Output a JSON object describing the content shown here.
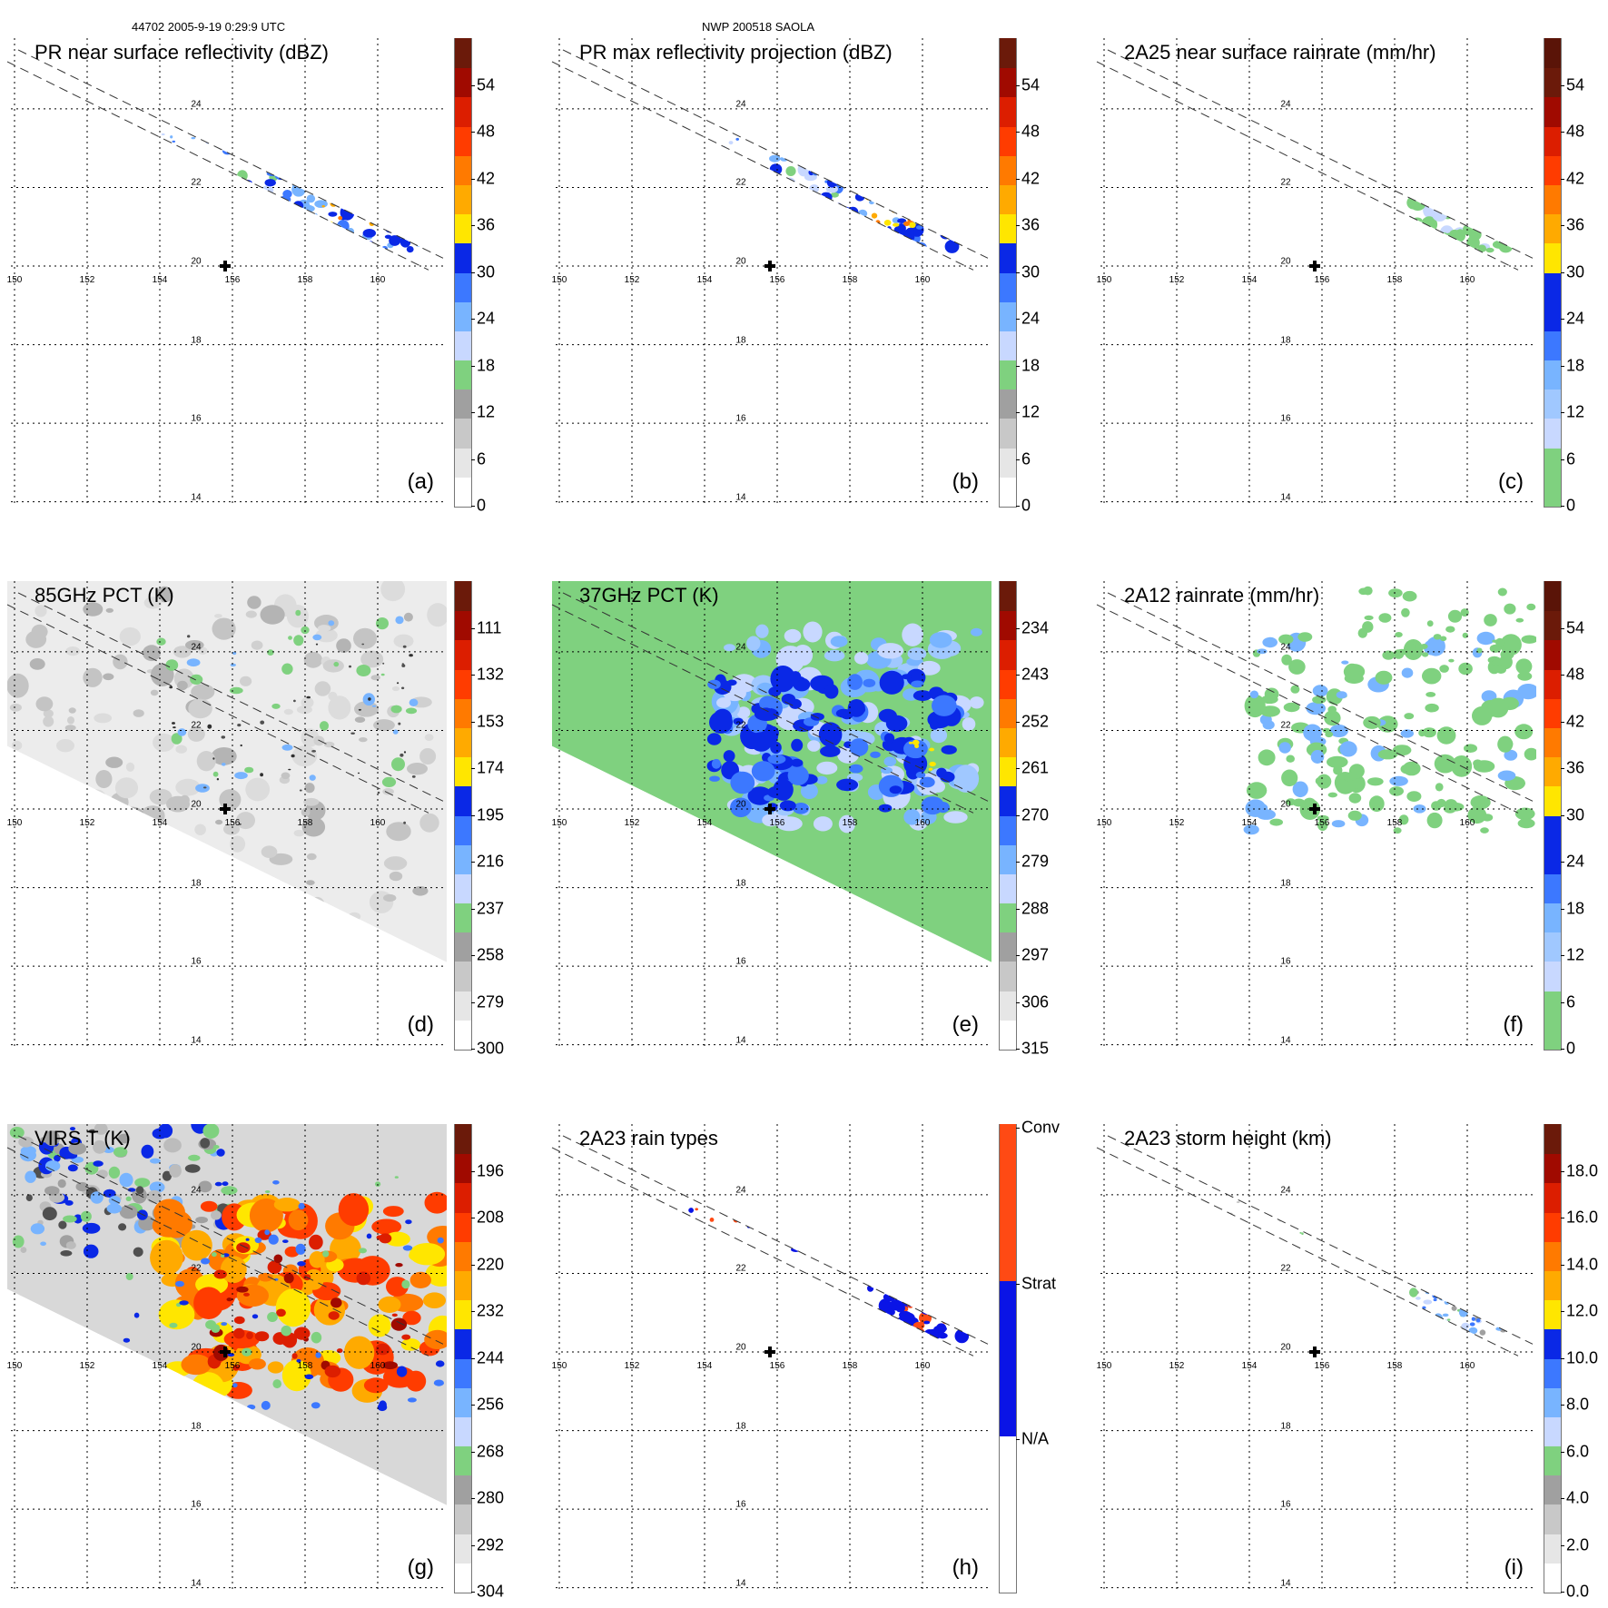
{
  "header": {
    "orbit_time": "44702 2005-9-19 0:29:9 UTC",
    "storm_name": "NWP 200518 SAOLA"
  },
  "map_axes": {
    "lon_labels": [
      "150",
      "152",
      "154",
      "156",
      "158",
      "160"
    ],
    "lat_labels": [
      "24",
      "22",
      "20",
      "18",
      "16",
      "14"
    ],
    "storm_center": {
      "lon": 155.8,
      "lat": 20.0
    }
  },
  "panels": [
    {
      "id": "a",
      "title": "PR near surface reflectivity (dBZ)",
      "letter": "(a)",
      "field": "pr-swath",
      "colorbar": {
        "ticks": [
          "54",
          "48",
          "42",
          "36",
          "30",
          "24",
          "18",
          "12",
          "6",
          "0"
        ],
        "colors": [
          "#ffffff",
          "#e6e6e6",
          "#c8c8c8",
          "#a0a0a0",
          "#7fd17f",
          "#c8d8ff",
          "#78b4ff",
          "#3c78ff",
          "#0a28e6",
          "#ffe600",
          "#ffaa00",
          "#ff7a00",
          "#ff3c00",
          "#dc1e00",
          "#a00a00",
          "#6b1a0a"
        ]
      }
    },
    {
      "id": "b",
      "title": "PR max reflectivity projection (dBZ)",
      "letter": "(b)",
      "field": "pr-swath-max",
      "colorbar": {
        "ticks": [
          "54",
          "48",
          "42",
          "36",
          "30",
          "24",
          "18",
          "12",
          "6",
          "0"
        ],
        "colors": [
          "#ffffff",
          "#e6e6e6",
          "#c8c8c8",
          "#a0a0a0",
          "#7fd17f",
          "#c8d8ff",
          "#78b4ff",
          "#3c78ff",
          "#0a28e6",
          "#ffe600",
          "#ffaa00",
          "#ff7a00",
          "#ff3c00",
          "#dc1e00",
          "#a00a00",
          "#6b1a0a"
        ]
      }
    },
    {
      "id": "c",
      "title": "2A25 near surface rainrate (mm/hr)",
      "letter": "(c)",
      "field": "pr-rain",
      "colorbar": {
        "ticks": [
          "54",
          "48",
          "42",
          "36",
          "30",
          "24",
          "18",
          "12",
          "6",
          "0"
        ],
        "colors": [
          "#7fd17f",
          "#7fd17f",
          "#c8d8ff",
          "#a0c8ff",
          "#78b4ff",
          "#3c78ff",
          "#0a28e6",
          "#0a28e6",
          "#ffe600",
          "#ffaa00",
          "#ff7a00",
          "#ff3c00",
          "#dc1e00",
          "#a00a00",
          "#6b1a0a",
          "#5a1408"
        ]
      }
    },
    {
      "id": "d",
      "title": "85GHz PCT (K)",
      "letter": "(d)",
      "field": "tmi-85",
      "colorbar": {
        "ticks": [
          "111",
          "132",
          "153",
          "174",
          "195",
          "216",
          "237",
          "258",
          "279",
          "300"
        ],
        "colors": [
          "#ffffff",
          "#e6e6e6",
          "#c8c8c8",
          "#a0a0a0",
          "#7fd17f",
          "#c8d8ff",
          "#78b4ff",
          "#3c78ff",
          "#0a28e6",
          "#ffe600",
          "#ffaa00",
          "#ff7a00",
          "#ff3c00",
          "#dc1e00",
          "#a00a00",
          "#6b1a0a"
        ]
      }
    },
    {
      "id": "e",
      "title": "37GHz PCT (K)",
      "letter": "(e)",
      "field": "tmi-37",
      "colorbar": {
        "ticks": [
          "234",
          "243",
          "252",
          "261",
          "270",
          "279",
          "288",
          "297",
          "306",
          "315"
        ],
        "colors": [
          "#ffffff",
          "#e6e6e6",
          "#c8c8c8",
          "#a0a0a0",
          "#7fd17f",
          "#c8d8ff",
          "#78b4ff",
          "#3c78ff",
          "#0a28e6",
          "#ffe600",
          "#ffaa00",
          "#ff7a00",
          "#ff3c00",
          "#dc1e00",
          "#a00a00",
          "#6b1a0a"
        ]
      }
    },
    {
      "id": "f",
      "title": "2A12 rainrate (mm/hr)",
      "letter": "(f)",
      "field": "tmi-rain",
      "colorbar": {
        "ticks": [
          "54",
          "48",
          "42",
          "36",
          "30",
          "24",
          "18",
          "12",
          "6",
          "0"
        ],
        "colors": [
          "#7fd17f",
          "#7fd17f",
          "#c8d8ff",
          "#a0c8ff",
          "#78b4ff",
          "#3c78ff",
          "#0a28e6",
          "#0a28e6",
          "#ffe600",
          "#ffaa00",
          "#ff7a00",
          "#ff3c00",
          "#dc1e00",
          "#a00a00",
          "#6b1a0a",
          "#5a1408"
        ]
      }
    },
    {
      "id": "g",
      "title": "VIRS T (K)",
      "letter": "(g)",
      "field": "virs",
      "colorbar": {
        "ticks": [
          "196",
          "208",
          "220",
          "232",
          "244",
          "256",
          "268",
          "280",
          "292",
          "304"
        ],
        "colors": [
          "#ffffff",
          "#e6e6e6",
          "#c8c8c8",
          "#a0a0a0",
          "#7fd17f",
          "#c8d8ff",
          "#78b4ff",
          "#3c78ff",
          "#0a28e6",
          "#ffe600",
          "#ffaa00",
          "#ff7a00",
          "#ff3c00",
          "#dc1e00",
          "#a00a00",
          "#6b1a0a"
        ]
      }
    },
    {
      "id": "h",
      "title": "2A23 rain types",
      "letter": "(h)",
      "field": "pr-type",
      "colorbar": {
        "categorical": true,
        "ticks": [
          "Conv",
          "Strat",
          "N/A"
        ],
        "colors": [
          "#ffffff",
          "#0a14e6",
          "#ff4a14"
        ]
      }
    },
    {
      "id": "i",
      "title": "2A23 storm height (km)",
      "letter": "(i)",
      "field": "pr-height",
      "colorbar": {
        "ticks": [
          "18.0",
          "16.0",
          "14.0",
          "12.0",
          "10.0",
          "8.0",
          "6.0",
          "4.0",
          "2.0",
          "0.0"
        ],
        "colors": [
          "#ffffff",
          "#e6e6e6",
          "#c8c8c8",
          "#a0a0a0",
          "#7fd17f",
          "#c8d8ff",
          "#78b4ff",
          "#3c78ff",
          "#0a28e6",
          "#ffe600",
          "#ffaa00",
          "#ff7a00",
          "#ff3c00",
          "#dc1e00",
          "#a00a00",
          "#6b1a0a"
        ]
      }
    }
  ]
}
